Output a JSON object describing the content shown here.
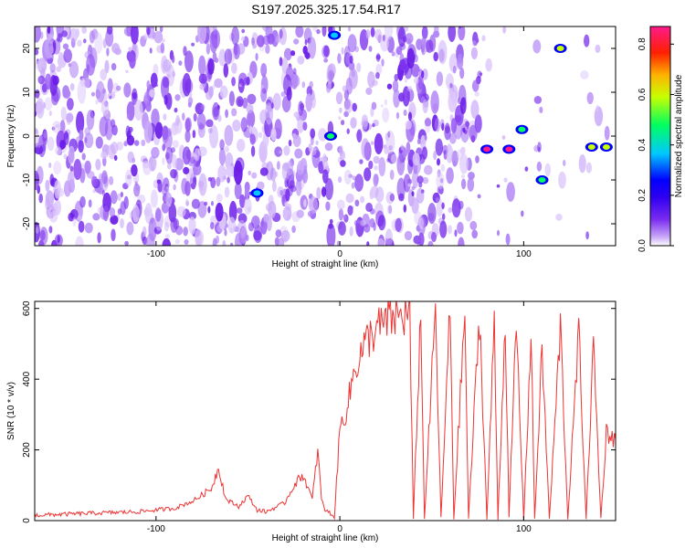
{
  "title": "S197.2025.325.17.54.R17",
  "chart_data": [
    {
      "type": "heatmap",
      "xlabel": "Height of straight line (km)",
      "ylabel": "Frequency (Hz)",
      "xlim": [
        -166,
        150
      ],
      "ylim": [
        -25,
        25
      ],
      "x_ticks": [
        -100,
        0,
        100
      ],
      "y_ticks": [
        -20,
        -10,
        0,
        10,
        20
      ],
      "colorbar": {
        "label": "Normalized spectral amplitude",
        "range": [
          0,
          0.87
        ],
        "ticks": [
          0.0,
          0.2,
          0.4,
          0.6,
          0.8
        ],
        "tick_labels": [
          "0.0",
          "0.2",
          "0.4",
          "0.6",
          "0.8"
        ],
        "colors": [
          "#ffffff",
          "#9b5cf0",
          "#5a00e8",
          "#0000ff",
          "#00ccff",
          "#00ff66",
          "#ffff00",
          "#ff8800",
          "#ff0000",
          "#ff1a8c"
        ]
      },
      "features": [
        {
          "x": -45,
          "y": -13,
          "value": 0.35
        },
        {
          "x": -5,
          "y": 0,
          "value": 0.45
        },
        {
          "x": -3,
          "y": 23,
          "value": 0.3
        },
        {
          "x": 80,
          "y": -3,
          "value": 0.8
        },
        {
          "x": 92,
          "y": -3,
          "value": 0.8
        },
        {
          "x": 99,
          "y": 1.5,
          "value": 0.45
        },
        {
          "x": 110,
          "y": -10,
          "value": 0.4
        },
        {
          "x": 120,
          "y": 20,
          "value": 0.5
        },
        {
          "x": 137,
          "y": -2.5,
          "value": 0.5
        },
        {
          "x": 145,
          "y": -2.5,
          "value": 0.5
        }
      ]
    },
    {
      "type": "line",
      "xlabel": "Height of straight line (km)",
      "ylabel": "SNR (10 * v/v)",
      "xlim": [
        -166,
        150
      ],
      "ylim": [
        0,
        620
      ],
      "x_ticks": [
        -100,
        0,
        100
      ],
      "y_ticks": [
        0,
        200,
        400,
        600
      ],
      "color": "#ee3333",
      "series": [
        {
          "x": [
            -166,
            -140,
            -110,
            -90,
            -80,
            -70,
            -66,
            -62,
            -55,
            -50,
            -45,
            -40,
            -30,
            -25,
            -20,
            -15,
            -12,
            -10,
            -8,
            -5,
            -3,
            0,
            4,
            8,
            12,
            16,
            20,
            25,
            30,
            35,
            38,
            40,
            44,
            46,
            52,
            55,
            60,
            62,
            68,
            70,
            76,
            80,
            84,
            86,
            90,
            92,
            96,
            100,
            104,
            106,
            110,
            114,
            120,
            124,
            130,
            134,
            138,
            142,
            145,
            150
          ],
          "y": [
            15,
            20,
            25,
            35,
            55,
            90,
            150,
            60,
            40,
            70,
            30,
            25,
            50,
            100,
            130,
            60,
            200,
            60,
            30,
            20,
            10,
            260,
            320,
            430,
            480,
            520,
            540,
            560,
            575,
            580,
            590,
            5,
            590,
            5,
            595,
            5,
            600,
            5,
            590,
            5,
            580,
            5,
            560,
            5,
            570,
            5,
            560,
            5,
            520,
            5,
            480,
            5,
            550,
            5,
            530,
            5,
            500,
            5,
            250,
            230
          ]
        }
      ]
    }
  ]
}
